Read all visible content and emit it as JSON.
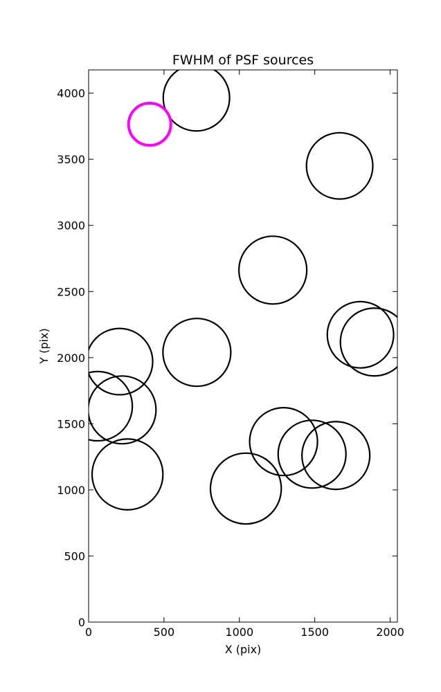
{
  "chart_data": {
    "type": "scatter",
    "title": "FWHM of PSF sources",
    "xlabel": "X (pix)",
    "ylabel": "Y (pix)",
    "xlim": [
      0,
      2048
    ],
    "ylim": [
      0,
      4176
    ],
    "xticks": [
      0,
      500,
      1000,
      1500,
      2000
    ],
    "yticks": [
      0,
      500,
      1000,
      1500,
      2000,
      2500,
      3000,
      3500,
      4000
    ],
    "grid": false,
    "marker": "open-circle",
    "radius_units": "data (x pix)",
    "sources": [
      {
        "x": 715,
        "y": 3965,
        "r": 220,
        "color": "#000000"
      },
      {
        "x": 405,
        "y": 3765,
        "r": 140,
        "color": "#ff00ff"
      },
      {
        "x": 1665,
        "y": 3450,
        "r": 220,
        "color": "#000000"
      },
      {
        "x": 1222,
        "y": 2662,
        "r": 225,
        "color": "#000000"
      },
      {
        "x": 1803,
        "y": 2173,
        "r": 220,
        "color": "#000000"
      },
      {
        "x": 1895,
        "y": 2118,
        "r": 225,
        "color": "#000000"
      },
      {
        "x": 205,
        "y": 1970,
        "r": 220,
        "color": "#000000"
      },
      {
        "x": 718,
        "y": 2040,
        "r": 225,
        "color": "#000000"
      },
      {
        "x": 60,
        "y": 1633,
        "r": 230,
        "color": "#000000"
      },
      {
        "x": 222,
        "y": 1605,
        "r": 225,
        "color": "#000000"
      },
      {
        "x": 1293,
        "y": 1365,
        "r": 225,
        "color": "#000000"
      },
      {
        "x": 1482,
        "y": 1270,
        "r": 225,
        "color": "#000000"
      },
      {
        "x": 1640,
        "y": 1260,
        "r": 225,
        "color": "#000000"
      },
      {
        "x": 258,
        "y": 1117,
        "r": 235,
        "color": "#000000"
      },
      {
        "x": 1043,
        "y": 1010,
        "r": 235,
        "color": "#000000"
      }
    ]
  }
}
